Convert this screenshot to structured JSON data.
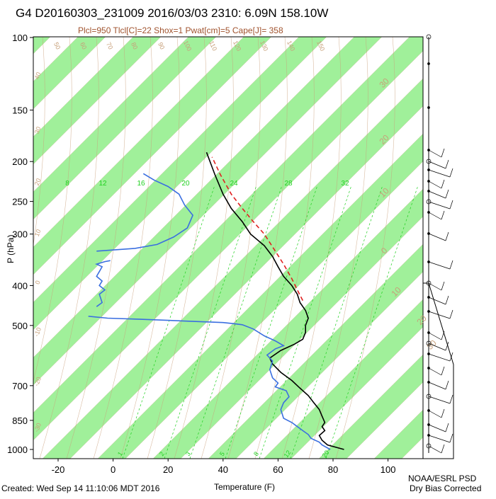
{
  "chart_data": {
    "type": "line",
    "title": "G4 D20160303_231009 2016/03/03 2310:  6.09N 158.10W",
    "subtitle": "Plcl=950 Tlcl[C]=22 Shox=1 Pwat[cm]=5 Cape[J]= 358",
    "xlabel": "Temperature (F)",
    "ylabel": "P (hPa)",
    "x_ticks": [
      "-20",
      "0",
      "20",
      "40",
      "60",
      "80",
      "100"
    ],
    "x_tick_values": [
      -20,
      0,
      20,
      40,
      60,
      80,
      100
    ],
    "y_ticks": [
      "100",
      "150",
      "200",
      "250",
      "300",
      "400",
      "500",
      "700",
      "850",
      "1000"
    ],
    "y_tick_values": [
      100,
      150,
      200,
      250,
      300,
      400,
      500,
      700,
      850,
      1000
    ],
    "xlim": [
      -29,
      104
    ],
    "ylim": [
      1050,
      100
    ],
    "y_scale": "log",
    "skewed_isotherm_labels": [
      "30",
      "20",
      "10",
      "0",
      "10",
      "20",
      "30",
      "40",
      "50"
    ],
    "mixing_ratio_labels": [
      "8",
      "12",
      "16",
      "20",
      "24",
      "28",
      "32"
    ],
    "mixing_ratio_bottom_labels": [
      "1",
      "2",
      "3",
      "5",
      "8",
      "12",
      "20"
    ],
    "theta_labels_top": [
      "50",
      "60",
      "70",
      "80",
      "90",
      "100",
      "110",
      "120",
      "130",
      "140",
      "150"
    ],
    "theta_labels_left": [
      "40",
      "30",
      "20",
      "10",
      "0",
      "-10",
      "-20",
      "-30"
    ],
    "series": [
      {
        "name": "",
        "color": "#000000",
        "points": [
          [
            84,
            1000
          ],
          [
            78,
            975
          ],
          [
            76,
            950
          ],
          [
            75,
            925
          ],
          [
            77,
            900
          ],
          [
            76,
            880
          ],
          [
            77,
            860
          ],
          [
            76,
            830
          ],
          [
            75,
            800
          ],
          [
            73,
            770
          ],
          [
            71,
            740
          ],
          [
            68,
            710
          ],
          [
            65,
            680
          ],
          [
            61,
            650
          ],
          [
            58,
            620
          ],
          [
            57,
            600
          ],
          [
            61,
            575
          ],
          [
            66,
            555
          ],
          [
            69,
            540
          ],
          [
            70,
            520
          ],
          [
            70,
            500
          ],
          [
            71,
            480
          ],
          [
            70,
            460
          ],
          [
            68,
            440
          ],
          [
            67,
            420
          ],
          [
            65,
            400
          ],
          [
            62,
            380
          ],
          [
            60,
            360
          ],
          [
            58,
            340
          ],
          [
            55,
            320
          ],
          [
            50,
            300
          ],
          [
            47,
            280
          ],
          [
            43,
            260
          ],
          [
            40,
            240
          ],
          [
            37,
            215
          ],
          [
            34,
            190
          ]
        ]
      },
      {
        "name": "",
        "color": "#3b6fe0",
        "points": [
          [
            79,
            1000
          ],
          [
            76,
            975
          ],
          [
            75,
            960
          ],
          [
            72,
            940
          ],
          [
            71,
            920
          ],
          [
            69,
            900
          ],
          [
            67,
            880
          ],
          [
            65,
            860
          ],
          [
            62,
            840
          ],
          [
            61,
            800
          ],
          [
            62,
            770
          ],
          [
            64,
            745
          ],
          [
            63,
            720
          ],
          [
            59,
            705
          ],
          [
            60,
            690
          ],
          [
            58,
            670
          ],
          [
            57,
            640
          ],
          [
            58,
            610
          ],
          [
            56,
            590
          ],
          [
            59,
            570
          ],
          [
            62,
            560
          ],
          [
            59,
            545
          ],
          [
            55,
            530
          ],
          [
            51,
            510
          ],
          [
            47,
            498
          ],
          [
            44,
            495
          ],
          [
            40,
            492
          ],
          [
            30,
            489
          ],
          [
            20,
            486
          ],
          [
            10,
            483
          ],
          [
            -2,
            480
          ],
          [
            -9,
            475
          ]
        ]
      },
      {
        "name": "",
        "color": "#3b6fe0",
        "points": [
          [
            -6,
            450
          ],
          [
            -4,
            440
          ],
          [
            -5,
            420
          ],
          [
            -3,
            410
          ],
          [
            -5,
            400
          ],
          [
            -4,
            390
          ],
          [
            -6,
            380
          ],
          [
            -5,
            370
          ],
          [
            -4,
            360
          ],
          [
            -6,
            355
          ],
          [
            -3,
            350
          ],
          [
            -1,
            348
          ]
        ]
      },
      {
        "name": "",
        "color": "#3b6fe0",
        "points": [
          [
            -6,
            330
          ],
          [
            8,
            325
          ],
          [
            16,
            318
          ],
          [
            22,
            305
          ],
          [
            27,
            290
          ],
          [
            29,
            270
          ],
          [
            26,
            255
          ],
          [
            24,
            240
          ],
          [
            20,
            230
          ],
          [
            15,
            222
          ],
          [
            11,
            214
          ]
        ]
      },
      {
        "name": "",
        "color": "#e02020",
        "dashed": true,
        "points": [
          [
            69,
            435
          ],
          [
            67,
            410
          ],
          [
            65,
            385
          ],
          [
            62,
            355
          ],
          [
            59,
            330
          ],
          [
            55,
            300
          ],
          [
            51,
            280
          ],
          [
            47,
            260
          ],
          [
            43,
            240
          ],
          [
            39,
            215
          ],
          [
            36,
            195
          ]
        ]
      }
    ],
    "wind_barbs": true,
    "footer_left": "Created: Wed Sep 14 11:10:06 MDT 2016",
    "footer_right_line1": "NOAA/ESRL PSD",
    "footer_right_line2": "Dry Bias Corrected",
    "colors": {
      "band_green": "#a0f09a",
      "isotherm": "#c9a07a",
      "mixing_ratio": "#1fd01f",
      "temperature": "#000000",
      "dewpoint": "#3b6fe0",
      "parcel": "#e02020"
    }
  }
}
